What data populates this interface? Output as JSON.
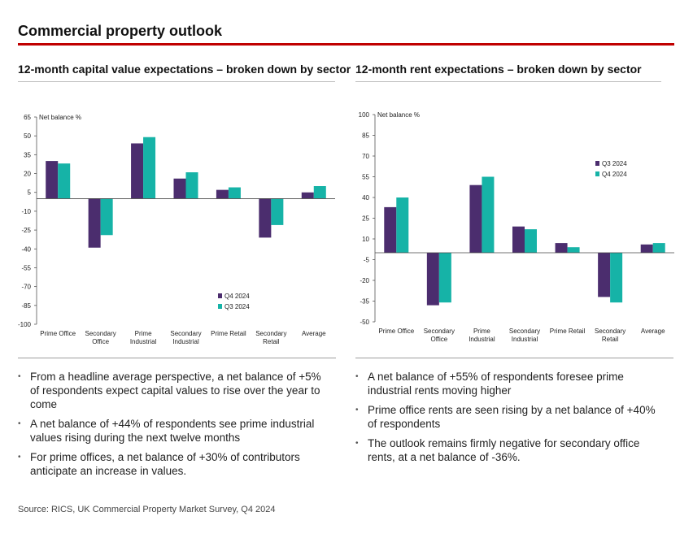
{
  "page": {
    "title": "Commercial property outlook",
    "source": "Source: RICS, UK Commercial Property Market Survey, Q4 2024"
  },
  "colors": {
    "rule": "#c00000",
    "dark_series": "#4b2d6e",
    "teal_series": "#16b3a7"
  },
  "left_panel": {
    "bullets": [
      "From a headline average perspective, a net balance of +5% of respondents expect capital values to rise over the year to come",
      "A net balance of +44% of respondents see prime industrial values rising during the next twelve months",
      "For prime offices, a net balance of +30% of contributors anticipate an increase in values."
    ]
  },
  "right_panel": {
    "bullets": [
      "A net balance of +55% of respondents foresee prime industrial rents moving higher",
      "Prime office rents are seen rising by a net balance of +40% of respondents",
      "The outlook remains firmly negative for secondary office rents, at a net balance of -36%."
    ]
  },
  "chart_data": [
    {
      "type": "bar",
      "title": "12-month capital value expectations – broken down by sector",
      "ylabel": "Net balance %",
      "categories": [
        "Prime Office",
        "Secondary Office",
        "Prime Industrial",
        "Secondary Industrial",
        "Prime Retail",
        "Secondary Retail",
        "Average"
      ],
      "series": [
        {
          "name": "Q4 2024",
          "color": "#4b2d6e",
          "values": [
            30,
            -39,
            44,
            16,
            7,
            -31,
            5
          ]
        },
        {
          "name": "Q3 2024",
          "color": "#16b3a7",
          "values": [
            28,
            -29,
            49,
            21,
            9,
            -21,
            10
          ]
        }
      ],
      "ylim": [
        -100,
        65
      ],
      "yticks": [
        65,
        50,
        35,
        20,
        5,
        -10,
        -25,
        -40,
        -55,
        -70,
        -85,
        -100
      ],
      "legend_position": "lower-right"
    },
    {
      "type": "bar",
      "title": "12-month rent expectations – broken down by sector",
      "ylabel": "Net balance %",
      "categories": [
        "Prime Office",
        "Secondary Office",
        "Prime Industrial",
        "Secondary Industrial",
        "Prime Retail",
        "Secondary Retail",
        "Average"
      ],
      "series": [
        {
          "name": "Q3 2024",
          "color": "#4b2d6e",
          "values": [
            33,
            -38,
            49,
            19,
            7,
            -32,
            6
          ]
        },
        {
          "name": "Q4 2024",
          "color": "#16b3a7",
          "values": [
            40,
            -36,
            55,
            17,
            4,
            -36,
            7
          ]
        }
      ],
      "ylim": [
        -50,
        100
      ],
      "yticks": [
        100,
        85,
        70,
        55,
        40,
        25,
        10,
        -5,
        -20,
        -35,
        -50
      ],
      "legend_position": "upper-right"
    }
  ]
}
